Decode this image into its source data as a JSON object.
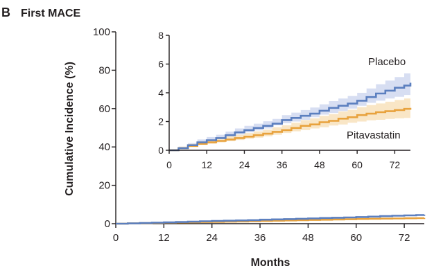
{
  "panel": {
    "letter": "B",
    "title": "First MACE"
  },
  "chart_data": {
    "type": "line",
    "xlabel": "Months",
    "ylabel": "Cumulative Incidence (%)",
    "x_ticks": [
      0,
      12,
      24,
      36,
      48,
      60,
      72
    ],
    "xlim": [
      0,
      77
    ],
    "main": {
      "ylim": [
        0,
        100
      ],
      "y_ticks": [
        0,
        20,
        40,
        60,
        80,
        100
      ]
    },
    "inset": {
      "ylim": [
        0,
        8
      ],
      "y_ticks": [
        0,
        2,
        4,
        6,
        8
      ]
    },
    "series": [
      {
        "name": "Placebo",
        "color": "#5b7fbf",
        "band_color": "#c9d3ee",
        "x": [
          0,
          3,
          6,
          9,
          12,
          15,
          18,
          21,
          24,
          27,
          30,
          33,
          36,
          39,
          42,
          45,
          48,
          51,
          54,
          57,
          60,
          63,
          66,
          69,
          72,
          75,
          77
        ],
        "y": [
          0,
          0.15,
          0.35,
          0.55,
          0.7,
          0.85,
          1.05,
          1.25,
          1.4,
          1.55,
          1.7,
          1.85,
          2.1,
          2.25,
          2.4,
          2.55,
          2.75,
          2.95,
          3.1,
          3.25,
          3.45,
          3.7,
          3.95,
          4.15,
          4.35,
          4.5,
          4.7
        ],
        "lower": [
          0,
          0.05,
          0.2,
          0.35,
          0.5,
          0.62,
          0.8,
          0.98,
          1.1,
          1.25,
          1.38,
          1.52,
          1.75,
          1.88,
          2.0,
          2.12,
          2.3,
          2.48,
          2.6,
          2.73,
          2.9,
          3.1,
          3.3,
          3.45,
          3.6,
          3.72,
          3.85
        ],
        "upper": [
          0,
          0.25,
          0.5,
          0.75,
          0.92,
          1.08,
          1.3,
          1.52,
          1.7,
          1.85,
          2.02,
          2.18,
          2.45,
          2.62,
          2.8,
          2.98,
          3.2,
          3.42,
          3.6,
          3.78,
          4.0,
          4.3,
          4.6,
          4.85,
          5.1,
          5.35,
          5.7
        ]
      },
      {
        "name": "Pitavastatin",
        "color": "#e8a23d",
        "band_color": "#f7ddb3",
        "x": [
          0,
          3,
          6,
          9,
          12,
          15,
          18,
          21,
          24,
          27,
          30,
          33,
          36,
          39,
          42,
          45,
          48,
          51,
          54,
          57,
          60,
          63,
          66,
          69,
          72,
          75,
          77
        ],
        "y": [
          0,
          0.15,
          0.3,
          0.45,
          0.55,
          0.65,
          0.75,
          0.85,
          0.95,
          1.05,
          1.15,
          1.28,
          1.4,
          1.55,
          1.7,
          1.8,
          1.95,
          2.05,
          2.2,
          2.3,
          2.45,
          2.55,
          2.65,
          2.72,
          2.8,
          2.88,
          2.95
        ],
        "lower": [
          0,
          0.05,
          0.15,
          0.28,
          0.38,
          0.46,
          0.55,
          0.64,
          0.72,
          0.8,
          0.88,
          0.98,
          1.08,
          1.2,
          1.32,
          1.4,
          1.52,
          1.6,
          1.72,
          1.8,
          1.92,
          2.0,
          2.08,
          2.12,
          2.18,
          2.22,
          2.25
        ],
        "upper": [
          0,
          0.25,
          0.45,
          0.62,
          0.74,
          0.86,
          0.97,
          1.08,
          1.2,
          1.32,
          1.44,
          1.6,
          1.74,
          1.92,
          2.1,
          2.22,
          2.4,
          2.52,
          2.7,
          2.82,
          3.0,
          3.14,
          3.26,
          3.38,
          3.5,
          3.6,
          3.7
        ]
      }
    ]
  }
}
